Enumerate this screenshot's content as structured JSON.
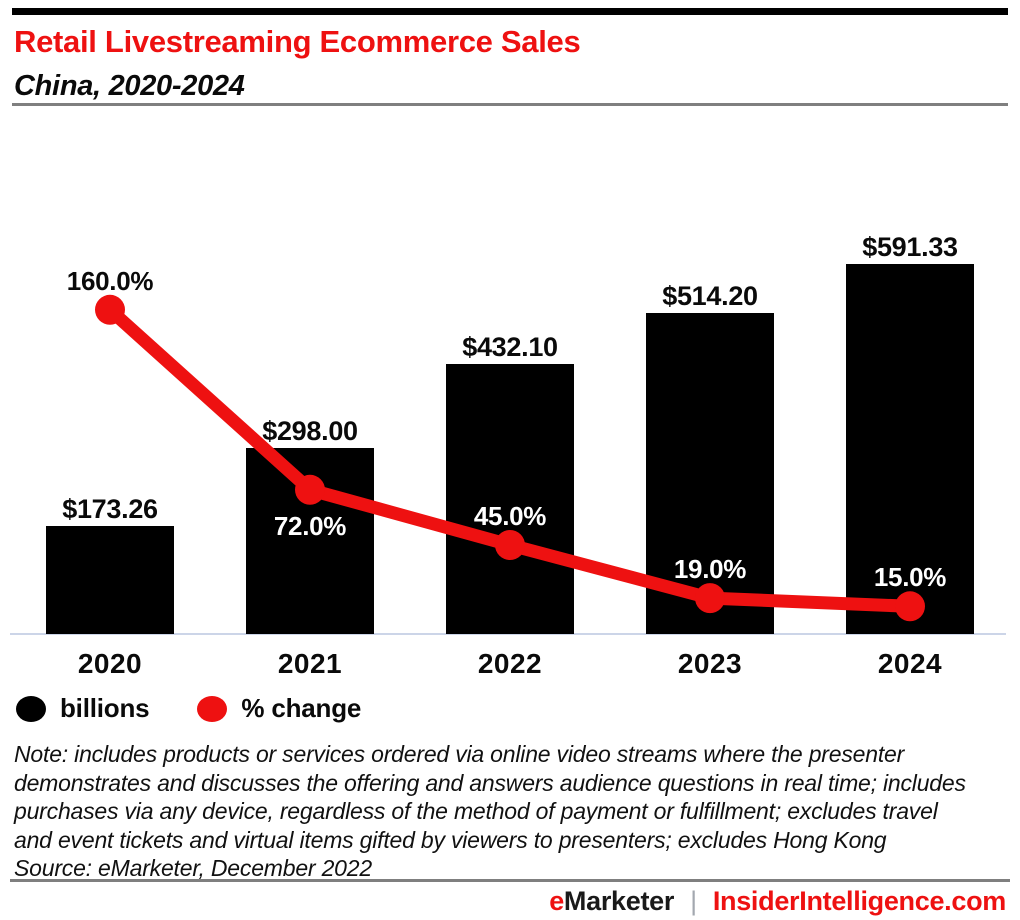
{
  "header": {
    "title": "Retail Livestreaming Ecommerce Sales",
    "subtitle": "China, 2020-2024"
  },
  "chart_data": {
    "type": "bar",
    "title": "Retail Livestreaming Ecommerce Sales, China, 2020-2024",
    "categories": [
      "2020",
      "2021",
      "2022",
      "2023",
      "2024"
    ],
    "series": [
      {
        "name": "billions",
        "type": "bar",
        "values": [
          173.26,
          298.0,
          432.1,
          514.2,
          591.33
        ],
        "labels": [
          "$173.26",
          "$298.00",
          "$432.10",
          "$514.20",
          "$591.33"
        ],
        "unit": "$ billions"
      },
      {
        "name": "% change",
        "type": "line",
        "values": [
          160.0,
          72.0,
          45.0,
          19.0,
          15.0
        ],
        "labels": [
          "160.0%",
          "72.0%",
          "45.0%",
          "19.0%",
          "15.0%"
        ],
        "label_placements": [
          "above",
          "below",
          "above",
          "above",
          "above"
        ],
        "label_tones": [
          "dark",
          "light",
          "light",
          "light",
          "light"
        ],
        "unit": "% change"
      }
    ],
    "xlabel": "",
    "ylabel": "",
    "value_axis_min": 0,
    "grid": false,
    "legend_position": "bottom-left"
  },
  "legend": [
    {
      "label": "billions",
      "color": "#000000"
    },
    {
      "label": "% change",
      "color": "#ee1111"
    }
  ],
  "note_lines": [
    "Note: includes products or services ordered via online video streams where the presenter",
    "demonstrates and discusses the offering and answers audience questions in real time; includes",
    "purchases via any device, regardless of the method of payment or fulfillment; excludes travel",
    "and event tickets and virtual items gifted by viewers to presenters; excludes Hong Kong"
  ],
  "source": "Source: eMarketer, December 2022",
  "footer": {
    "brand_prefix": "e",
    "brand_rest": "Marketer",
    "separator": "|",
    "site": "InsiderIntelligence.com"
  },
  "colors": {
    "accent_red": "#ee1111",
    "bar_black": "#000000",
    "axis_line": "#ccd5e8",
    "rule_gray": "#7f7f7f",
    "text_dark": "#0a0a0a",
    "label_light": "#ffffff"
  }
}
